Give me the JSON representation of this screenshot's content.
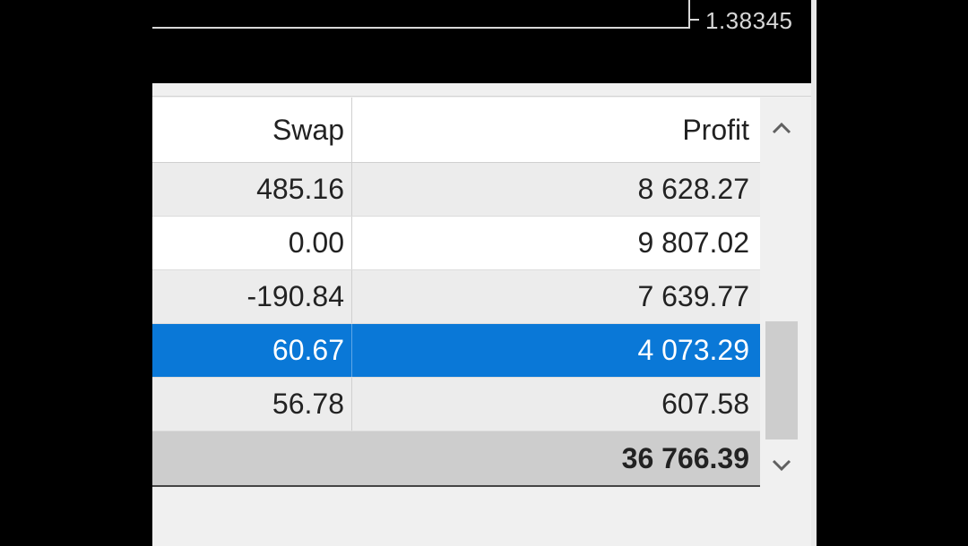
{
  "chart": {
    "price_label": "1.38345"
  },
  "table": {
    "headers": {
      "swap": "Swap",
      "profit": "Profit"
    },
    "rows": [
      {
        "swap": "485.16",
        "profit": "8 628.27"
      },
      {
        "swap": "0.00",
        "profit": "9 807.02"
      },
      {
        "swap": "-190.84",
        "profit": "7 639.77"
      },
      {
        "swap": "60.67",
        "profit": "4 073.29",
        "selected": true
      },
      {
        "swap": "56.78",
        "profit": "607.58"
      }
    ],
    "total": {
      "profit": "36 766.39"
    }
  },
  "scrollbar": {
    "up_icon": "chevron-up-icon",
    "down_icon": "chevron-down-icon"
  },
  "colors": {
    "selection": "#0a78d7",
    "total_row": "#cdcdcd",
    "chart_bg": "#000000"
  }
}
